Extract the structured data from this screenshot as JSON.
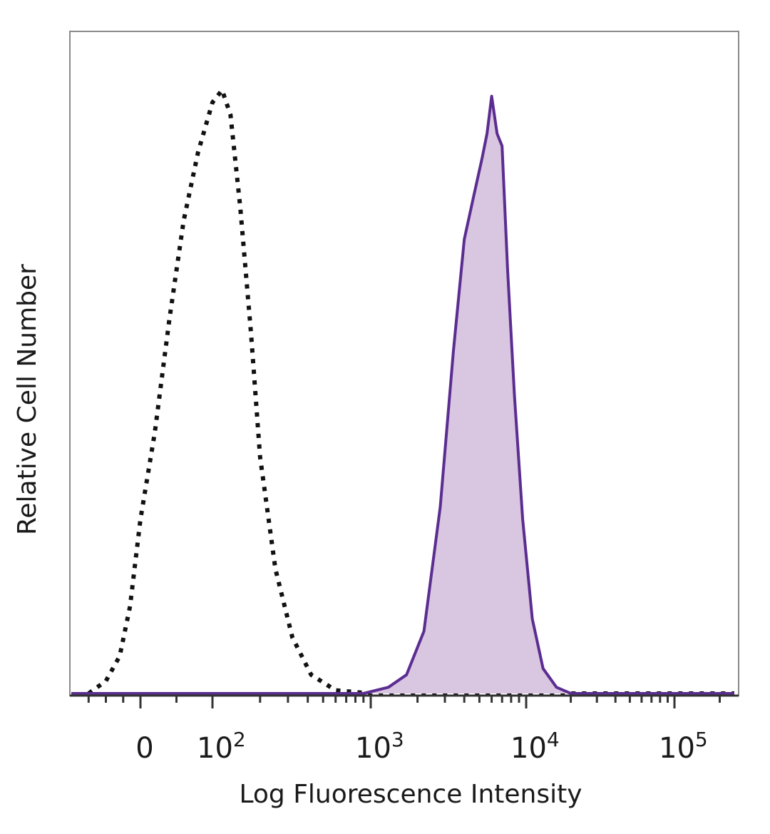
{
  "chart_data": {
    "type": "area",
    "xlabel": "Log Fluorescence Intensity",
    "ylabel": "Relative Cell Number",
    "x_scale": "biexponential",
    "xlim": [
      -200,
      250000
    ],
    "ylim": [
      0,
      1
    ],
    "grid": false,
    "x_ticks": [
      {
        "value": 0,
        "base": "0",
        "exp": ""
      },
      {
        "value": 100,
        "base": "10",
        "exp": "2"
      },
      {
        "value": 1000,
        "base": "10",
        "exp": "3"
      },
      {
        "value": 10000,
        "base": "10",
        "exp": "4"
      },
      {
        "value": 100000,
        "base": "10",
        "exp": "5"
      }
    ],
    "series": [
      {
        "style": "dotted-outline",
        "color": "#111111",
        "x": [
          -150,
          -100,
          -60,
          -30,
          0,
          20,
          40,
          60,
          80,
          100,
          115,
          130,
          150,
          175,
          200,
          250,
          320,
          420,
          600,
          1000,
          250000
        ],
        "y": [
          0.0,
          0.02,
          0.06,
          0.14,
          0.28,
          0.42,
          0.6,
          0.76,
          0.87,
          0.95,
          0.97,
          0.93,
          0.78,
          0.58,
          0.38,
          0.2,
          0.09,
          0.03,
          0.005,
          0.0,
          0.0
        ]
      },
      {
        "style": "filled-outline",
        "color": "#5b2d91",
        "fill": "#d9c6e0",
        "x": [
          -200,
          900,
          1300,
          1700,
          2200,
          2800,
          3400,
          4000,
          4600,
          5200,
          5600,
          6000,
          6500,
          7000,
          7600,
          8400,
          9500,
          11000,
          13000,
          16000,
          20000,
          250000
        ],
        "y": [
          0.0,
          0.0,
          0.01,
          0.03,
          0.1,
          0.3,
          0.55,
          0.73,
          0.8,
          0.86,
          0.9,
          0.96,
          0.9,
          0.88,
          0.68,
          0.48,
          0.28,
          0.12,
          0.04,
          0.01,
          0.0,
          0.0
        ]
      }
    ]
  }
}
